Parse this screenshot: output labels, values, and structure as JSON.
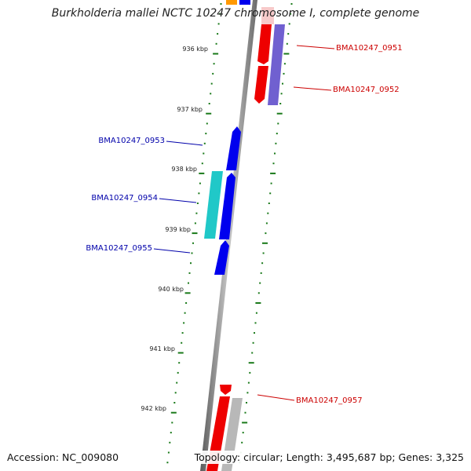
{
  "title": "Burkholderia mallei NCTC 10247 chromosome I, complete genome",
  "footer": {
    "accession": "Accession: NC_009080",
    "summary": "Topology: circular; Length: 3,495,687 bp; Genes: 3,325"
  },
  "colors": {
    "forward": "#0000ee",
    "reverse": "#ee0000",
    "forward_label": "#0000aa",
    "reverse_label": "#cc0000",
    "tick": "#1a7a1a",
    "backbone": "#888888"
  },
  "ticks": [
    "936 kbp",
    "937 kbp",
    "938 kbp",
    "939 kbp",
    "940 kbp",
    "941 kbp",
    "942 kbp"
  ],
  "genes": [
    {
      "label": "BMA10247_0951",
      "strand": "reverse",
      "color": "#ee0000"
    },
    {
      "label": "BMA10247_0952",
      "strand": "reverse",
      "color": "#7060d0"
    },
    {
      "label": "BMA10247_0953",
      "strand": "forward",
      "color": "#0000ee"
    },
    {
      "label": "BMA10247_0954",
      "strand": "forward",
      "color": "#20c8c8"
    },
    {
      "label": "BMA10247_0955",
      "strand": "forward",
      "color": "#0000ee"
    },
    {
      "label": "BMA10247_0957",
      "strand": "reverse",
      "color": "#ee0000"
    }
  ]
}
